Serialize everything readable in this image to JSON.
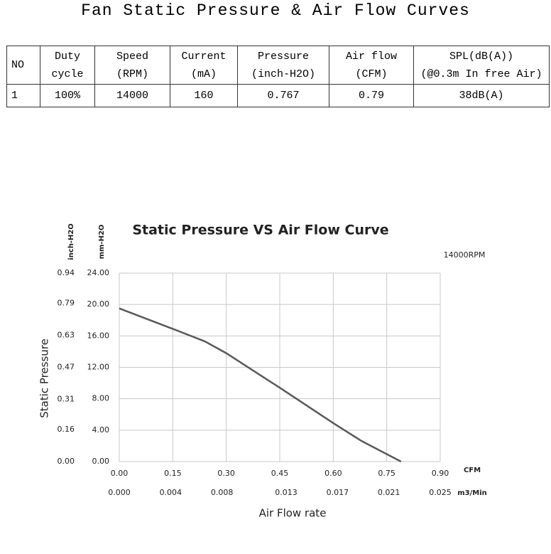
{
  "title": "Fan Static Pressure & Air Flow Curves",
  "table": {
    "headers": [
      [
        "NO"
      ],
      [
        "Duty",
        "cycle"
      ],
      [
        "Speed",
        "(RPM)"
      ],
      [
        "Current",
        "(mA)"
      ],
      [
        "Pressure",
        "(inch-H2O)"
      ],
      [
        "Air flow",
        "(CFM)"
      ],
      [
        "SPL(dB(A))",
        "(@0.3m In free Air)"
      ]
    ],
    "rows": [
      [
        "1",
        "100%",
        "14000",
        "160",
        "0.767",
        "0.79",
        "38dB(A)"
      ]
    ]
  },
  "chart_data": {
    "type": "line",
    "title": "Static Pressure VS Air Flow Curve",
    "annotation": "14000RPM",
    "y_label": "Static Pressure",
    "x_label": "Air Flow rate",
    "y_unit": "mm-H2O",
    "y2_unit": "inch-H2O",
    "x_unit": "CFM",
    "x2_unit": "m3/Min",
    "x": [
      0,
      0.15,
      0.24,
      0.3,
      0.45,
      0.6,
      0.68,
      0.79
    ],
    "series": [
      {
        "color": "#595959",
        "values": [
          19.5,
          16.9,
          15.3,
          13.8,
          9.4,
          4.9,
          2.6,
          0
        ]
      }
    ],
    "xlim": [
      0,
      0.9
    ],
    "xticks": [
      {
        "value": 0,
        "label": "0.00"
      },
      0.15,
      {
        "value": 0.3,
        "label": "0.30"
      },
      0.45,
      {
        "value": 0.6,
        "label": "0.60"
      },
      0.75,
      {
        "value": 0.9,
        "label": "0.90"
      }
    ],
    "x2lim": [
      0,
      0.025
    ],
    "x2ticks": [
      {
        "value": 0,
        "label": "0.000"
      },
      0.004,
      0.008,
      0.013,
      0.017,
      0.021,
      0.025
    ],
    "ylim": [
      0,
      24
    ],
    "yticks": [
      {
        "value": 0,
        "label": "0.00"
      },
      {
        "value": 4,
        "label": "4.00"
      },
      {
        "value": 8,
        "label": "8.00"
      },
      {
        "value": 12,
        "label": "12.00"
      },
      {
        "value": 16,
        "label": "16.00"
      },
      {
        "value": 20,
        "label": "20.00"
      },
      {
        "value": 24,
        "label": "24.00"
      }
    ],
    "y2lim": [
      0,
      0.94
    ],
    "y2ticks": [
      {
        "value": 0,
        "label": "0.00"
      },
      0.16,
      0.31,
      0.47,
      0.63,
      0.79,
      0.94
    ],
    "grid": true
  }
}
